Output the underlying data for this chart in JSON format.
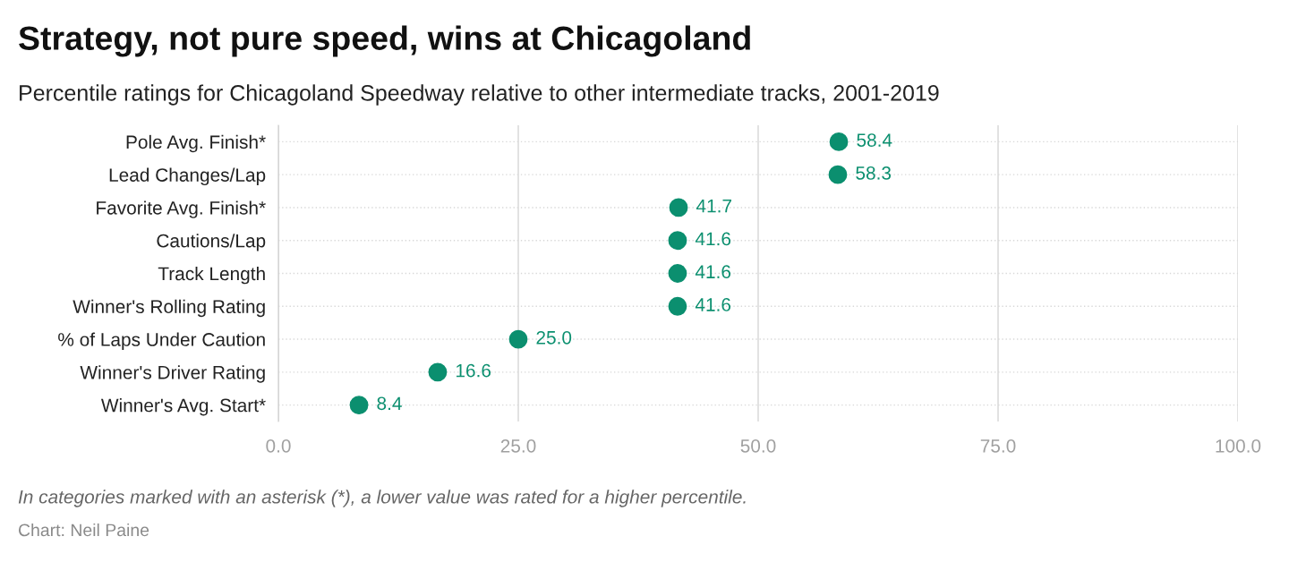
{
  "chart_data": {
    "type": "scatter",
    "orientation": "horizontal",
    "title": "Strategy, not pure speed, wins at Chicagoland",
    "subtitle": "Percentile ratings for Chicagoland Speedway relative to other intermediate tracks, 2001-2019",
    "categories": [
      "Pole Avg. Finish*",
      "Lead Changes/Lap",
      "Favorite Avg. Finish*",
      "Cautions/Lap",
      "Track Length",
      "Winner's Rolling Rating",
      "% of Laps Under Caution",
      "Winner's Driver Rating",
      "Winner's Avg. Start*"
    ],
    "values": [
      58.4,
      58.3,
      41.7,
      41.6,
      41.6,
      41.6,
      25.0,
      16.6,
      8.4
    ],
    "color": "#0b8f6f",
    "xlim": [
      0,
      100
    ],
    "xticks": [
      {
        "value": 0,
        "label": "0.0"
      },
      {
        "value": 25,
        "label": "25.0"
      },
      {
        "value": 50,
        "label": "50.0"
      },
      {
        "value": 75,
        "label": "75.0"
      },
      {
        "value": 100,
        "label": "100.0"
      }
    ],
    "value_labels": [
      "58.4",
      "58.3",
      "41.7",
      "41.6",
      "41.6",
      "41.6",
      "25.0",
      "16.6",
      "8.4"
    ],
    "grid": true,
    "marker": "circle",
    "annotations": [
      "In categories marked with an asterisk (*), a lower value was rated for a higher percentile.",
      "Chart: Neil Paine"
    ]
  }
}
